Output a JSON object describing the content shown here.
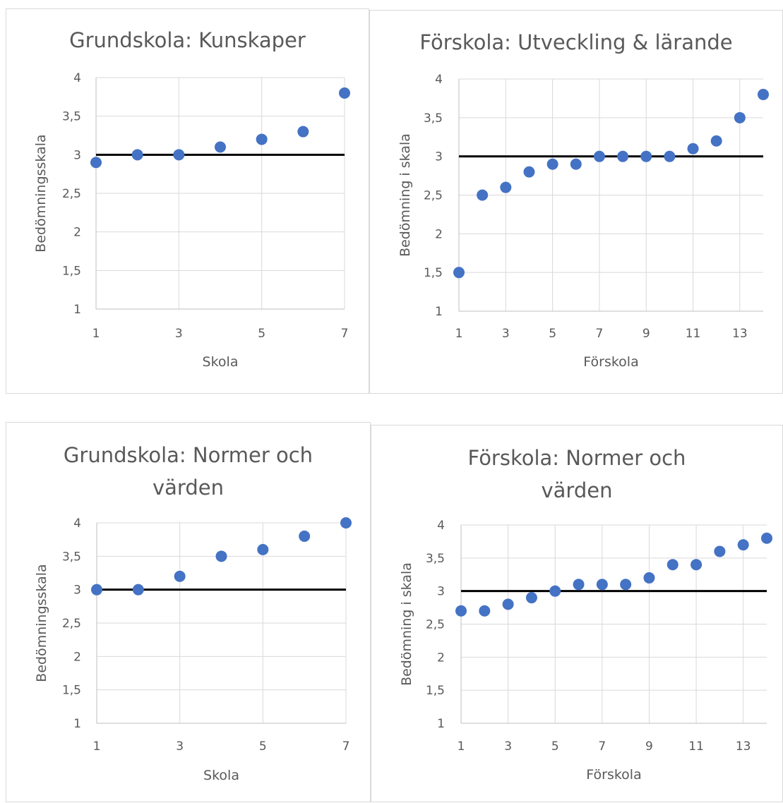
{
  "chart_data": [
    {
      "type": "scatter",
      "title": "Grundskola: Kunskaper",
      "xlabel": "Skola",
      "ylabel": "Bedömningsskala",
      "xlim": [
        1,
        7
      ],
      "ylim": [
        1,
        4
      ],
      "x_ticks": [
        "1",
        "3",
        "5",
        "7"
      ],
      "y_ticks": [
        "1",
        "1,5",
        "2",
        "2,5",
        "3",
        "3,5",
        "4"
      ],
      "reference_line": 3,
      "grid": true,
      "marker_color": "#4472c4",
      "x": [
        1,
        2,
        3,
        4,
        5,
        6,
        7
      ],
      "y": [
        2.9,
        3.0,
        3.0,
        3.1,
        3.2,
        3.3,
        3.8
      ]
    },
    {
      "type": "scatter",
      "title": "Förskola: Utveckling & lärande",
      "xlabel": "Förskola",
      "ylabel": "Bedömning i skala",
      "xlim": [
        1,
        14
      ],
      "ylim": [
        1,
        4
      ],
      "x_ticks": [
        "1",
        "3",
        "5",
        "7",
        "9",
        "11",
        "13"
      ],
      "y_ticks": [
        "1",
        "1,5",
        "2",
        "2,5",
        "3",
        "3,5",
        "4"
      ],
      "reference_line": 3,
      "grid": true,
      "marker_color": "#4472c4",
      "x": [
        1,
        2,
        3,
        4,
        5,
        6,
        7,
        8,
        9,
        10,
        11,
        12,
        13,
        14
      ],
      "y": [
        1.5,
        2.5,
        2.6,
        2.8,
        2.9,
        2.9,
        3.0,
        3.0,
        3.0,
        3.0,
        3.1,
        3.2,
        3.5,
        3.8
      ]
    },
    {
      "type": "scatter",
      "title": "Grundskola: Normer och\nvärden",
      "xlabel": "Skola",
      "ylabel": "Bedömningsskala",
      "xlim": [
        1,
        7
      ],
      "ylim": [
        1,
        4
      ],
      "x_ticks": [
        "1",
        "3",
        "5",
        "7"
      ],
      "y_ticks": [
        "1",
        "1,5",
        "2",
        "2,5",
        "3",
        "3,5",
        "4"
      ],
      "reference_line": 3,
      "grid": true,
      "marker_color": "#4472c4",
      "x": [
        1,
        2,
        3,
        4,
        5,
        6,
        7
      ],
      "y": [
        3.0,
        3.0,
        3.2,
        3.5,
        3.6,
        3.8,
        4.0
      ]
    },
    {
      "type": "scatter",
      "title": "Förskola: Normer och\nvärden",
      "xlabel": "Förskola",
      "ylabel": "Bedömning i skala",
      "xlim": [
        1,
        14
      ],
      "ylim": [
        1,
        4
      ],
      "x_ticks": [
        "1",
        "3",
        "5",
        "7",
        "9",
        "11",
        "13"
      ],
      "y_ticks": [
        "1",
        "1,5",
        "2",
        "2,5",
        "3",
        "3,5",
        "4"
      ],
      "reference_line": 3,
      "grid": true,
      "marker_color": "#4472c4",
      "x": [
        1,
        2,
        3,
        4,
        5,
        6,
        7,
        8,
        9,
        10,
        11,
        12,
        13,
        14
      ],
      "y": [
        2.7,
        2.7,
        2.8,
        2.9,
        3.0,
        3.1,
        3.1,
        3.1,
        3.2,
        3.4,
        3.4,
        3.6,
        3.7,
        3.8
      ]
    }
  ]
}
